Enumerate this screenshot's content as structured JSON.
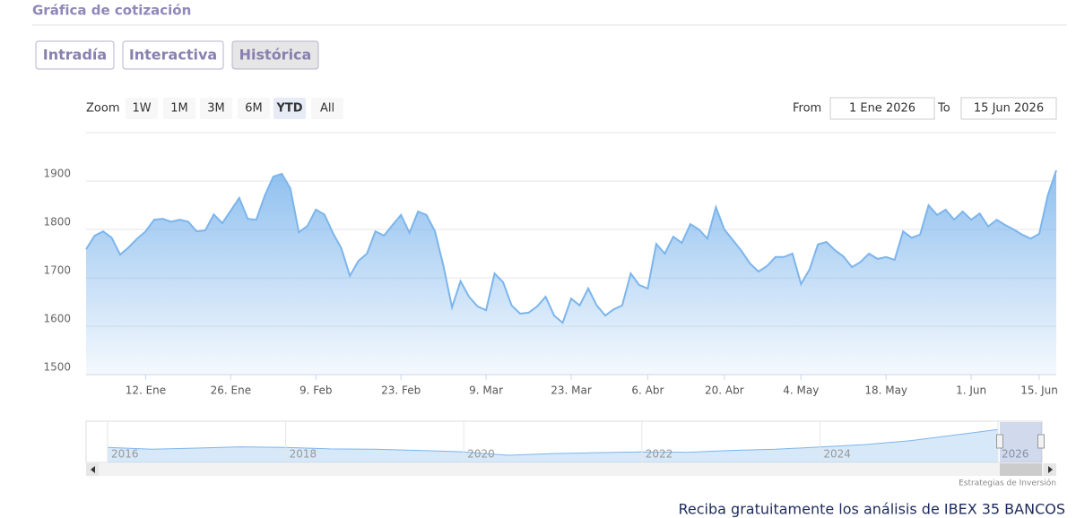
{
  "header": {
    "title": "Gráfica de cotización"
  },
  "tabs": [
    "Intradía",
    "Interactiva",
    "Histórica"
  ],
  "active_tab": 2,
  "zoom": {
    "label": "Zoom",
    "buttons": [
      "1W",
      "1M",
      "3M",
      "6M",
      "YTD",
      "All"
    ],
    "active": 4
  },
  "range": {
    "from_label": "From",
    "from": "1 Ene 2026",
    "to_label": "To",
    "to": "15 Jun 2026"
  },
  "chart_data": [
    {
      "type": "area",
      "color": "#7cb5ec",
      "grid": true,
      "ylim": [
        1500,
        2000
      ],
      "yticks": [
        1500,
        1600,
        1700,
        1800,
        1900
      ],
      "categories": [
        null,
        null,
        null,
        null,
        null,
        null,
        null,
        "12. Ene",
        null,
        null,
        null,
        null,
        null,
        null,
        null,
        null,
        null,
        "26. Ene",
        null,
        null,
        null,
        null,
        null,
        null,
        null,
        null,
        null,
        "9. Feb",
        null,
        null,
        null,
        null,
        null,
        null,
        null,
        null,
        null,
        "23. Feb",
        null,
        null,
        null,
        null,
        null,
        null,
        null,
        null,
        null,
        "9. Mar",
        null,
        null,
        null,
        null,
        null,
        null,
        null,
        null,
        null,
        "23. Mar",
        null,
        null,
        null,
        null,
        null,
        null,
        null,
        null,
        "6. Abr",
        null,
        null,
        null,
        null,
        null,
        null,
        null,
        null,
        "20. Abr",
        null,
        null,
        null,
        null,
        null,
        null,
        null,
        null,
        "4. May",
        null,
        null,
        null,
        null,
        null,
        null,
        null,
        null,
        null,
        "18. May",
        null,
        null,
        null,
        null,
        null,
        null,
        null,
        null,
        null,
        "1. Jun",
        null,
        null,
        null,
        null,
        null,
        null,
        null,
        "15. Jun",
        null,
        null
      ],
      "values": [
        1759,
        1787,
        1796,
        1783,
        1748,
        1763,
        1781,
        1796,
        1820,
        1822,
        1816,
        1820,
        1816,
        1796,
        1798,
        1831,
        1813,
        1839,
        1865,
        1822,
        1820,
        1870,
        1909,
        1915,
        1885,
        1794,
        1807,
        1841,
        1831,
        1793,
        1761,
        1704,
        1735,
        1750,
        1796,
        1787,
        1809,
        1830,
        1793,
        1837,
        1830,
        1796,
        1724,
        1639,
        1693,
        1661,
        1641,
        1633,
        1709,
        1691,
        1643,
        1626,
        1628,
        1641,
        1661,
        1622,
        1607,
        1657,
        1643,
        1678,
        1643,
        1622,
        1635,
        1643,
        1709,
        1685,
        1678,
        1770,
        1750,
        1785,
        1772,
        1811,
        1800,
        1781,
        1846,
        1800,
        1778,
        1756,
        1730,
        1713,
        1724,
        1743,
        1743,
        1750,
        1687,
        1717,
        1769,
        1774,
        1757,
        1744,
        1722,
        1733,
        1750,
        1739,
        1743,
        1737,
        1796,
        1783,
        1789,
        1850,
        1830,
        1841,
        1820,
        1837,
        1820,
        1833,
        1806,
        1820,
        1809,
        1800,
        1789,
        1781,
        1791,
        1870,
        1922
      ]
    },
    {
      "type": "area",
      "color": "#7cb5ec",
      "ylim": [
        0,
        2000
      ],
      "categories": [
        "2016",
        null,
        null,
        null,
        "2018",
        null,
        null,
        null,
        "2020",
        null,
        null,
        null,
        "2022",
        null,
        null,
        null,
        "2024",
        null,
        null,
        null,
        "2026"
      ],
      "values": [
        800,
        700,
        760,
        830,
        800,
        720,
        700,
        640,
        560,
        380,
        470,
        520,
        560,
        540,
        640,
        700,
        820,
        950,
        1150,
        1450,
        1750
      ]
    }
  ],
  "credit": "Estrategias de Inversión",
  "footer": "Reciba gratuitamente los análisis de IBEX 35 BANCOS"
}
